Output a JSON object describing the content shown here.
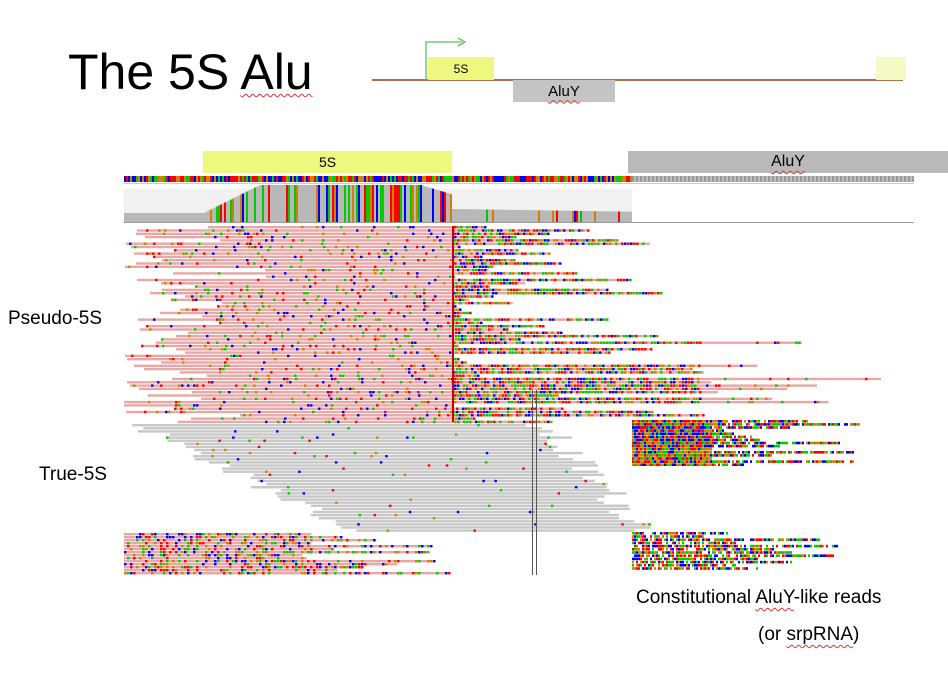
{
  "slide": {
    "title_prefix": "The 5S ",
    "title_word": "Alu"
  },
  "schematic": {
    "box_5s_label": "5S",
    "box_aluy_label": "AluY",
    "colors": {
      "five_s": "#eef77e",
      "aluy": "#c4c4c4",
      "line": "#8b4513",
      "arrow": "#5fbf5f"
    }
  },
  "track_header": {
    "five_s_label": "5S",
    "aluy_label": "AluY",
    "colors": {
      "five_s": "#eef77e",
      "aluy": "#b9b9b9"
    }
  },
  "labels": {
    "pseudo": "Pseudo-5S",
    "true": "True-5S"
  },
  "caption": {
    "line1_word": "AluY",
    "line1_prefix": "Constitutional ",
    "line1_suffix": "-like reads",
    "line2_prefix": "(or ",
    "line2_word": "srpRNA",
    "line2_suffix": ")"
  },
  "read_colors": {
    "pink": "#e8a8a8",
    "gray": "#c8c8c8",
    "A": "#00cc00",
    "T": "#ff0000",
    "C": "#0000ff",
    "G": "#d18000"
  }
}
